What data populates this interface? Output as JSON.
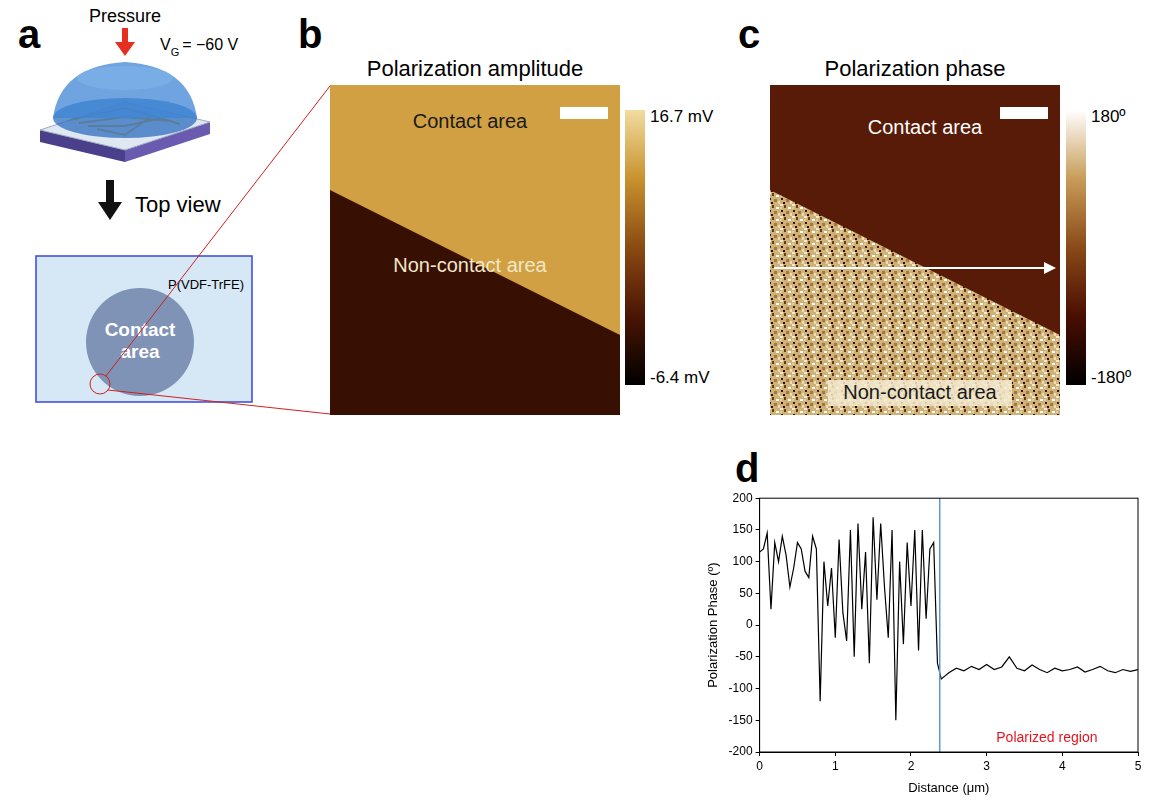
{
  "panel_a": {
    "letter": "a",
    "pressure_label": "Pressure",
    "gate": {
      "symbol": "V",
      "subscript": "G",
      "text": "= −60 V"
    },
    "view_label": "Top view",
    "film_label": "P(VDF-TrFE)",
    "contact_label": "Contact area"
  },
  "panel_b": {
    "letter": "b",
    "title": "Polarization amplitude",
    "contact_label": "Contact area",
    "noncontact_label": "Non-contact area",
    "contact_value": 12,
    "noncontact_value": -2,
    "colorbar": {
      "range": [
        -6.4,
        16.7
      ],
      "ticks": [
        {
          "value": 16.7,
          "label": "16.7 mV"
        },
        {
          "value": -6.4,
          "label": "-6.4 mV"
        }
      ]
    }
  },
  "panel_c": {
    "letter": "c",
    "title": "Polarization phase",
    "contact_label": "Contact area",
    "noncontact_label": "Non-contact area",
    "contact_value": -70,
    "colorbar": {
      "range": [
        -180,
        180
      ],
      "ticks": [
        {
          "value": 180,
          "label": "180º"
        },
        {
          "value": -180,
          "label": "-180º"
        }
      ]
    }
  },
  "chart_data": {
    "type": "line",
    "letter": "d",
    "x_label": "Distance (μm)",
    "y_label": "Polarization Phase (º)",
    "x": [
      0,
      0.05,
      0.1,
      0.15,
      0.2,
      0.25,
      0.3,
      0.35,
      0.4,
      0.45,
      0.5,
      0.55,
      0.6,
      0.65,
      0.7,
      0.75,
      0.8,
      0.85,
      0.9,
      0.95,
      1.0,
      1.05,
      1.1,
      1.15,
      1.2,
      1.25,
      1.3,
      1.35,
      1.4,
      1.45,
      1.5,
      1.55,
      1.6,
      1.65,
      1.7,
      1.75,
      1.8,
      1.85,
      1.9,
      1.95,
      2.0,
      2.05,
      2.1,
      2.15,
      2.2,
      2.25,
      2.3,
      2.35,
      2.4,
      2.45,
      2.5,
      2.6,
      2.7,
      2.8,
      2.9,
      3.0,
      3.1,
      3.2,
      3.3,
      3.4,
      3.5,
      3.6,
      3.7,
      3.8,
      3.9,
      4.0,
      4.1,
      4.2,
      4.3,
      4.4,
      4.5,
      4.6,
      4.7,
      4.8,
      4.9,
      5.0
    ],
    "series": [
      {
        "color": "#000000",
        "values": [
          115,
          120,
          145,
          25,
          130,
          100,
          140,
          110,
          60,
          90,
          130,
          120,
          85,
          75,
          140,
          120,
          -120,
          100,
          30,
          90,
          -20,
          135,
          20,
          -25,
          150,
          -50,
          160,
          25,
          115,
          -60,
          170,
          40,
          160,
          60,
          -20,
          150,
          -150,
          100,
          -30,
          130,
          30,
          150,
          -40,
          150,
          10,
          120,
          130,
          -60,
          -85,
          -80,
          -75,
          -68,
          -72,
          -65,
          -70,
          -62,
          -70,
          -66,
          -50,
          -68,
          -72,
          -63,
          -70,
          -75,
          -68,
          -72,
          -70,
          -66,
          -74,
          -70,
          -65,
          -72,
          -75,
          -70,
          -73,
          -70
        ]
      }
    ],
    "boundary": {
      "x": 2.38,
      "color": "#5b9bd5"
    },
    "annotation": {
      "text": "Polarized region",
      "color": "#e8141e"
    },
    "xlim": [
      0,
      5
    ],
    "xticks": [
      0,
      1,
      2,
      3,
      4,
      5
    ],
    "ylim": [
      -200,
      200
    ],
    "yticks": [
      -200,
      -150,
      -100,
      -50,
      0,
      50,
      100,
      150,
      200
    ],
    "grid": false
  }
}
